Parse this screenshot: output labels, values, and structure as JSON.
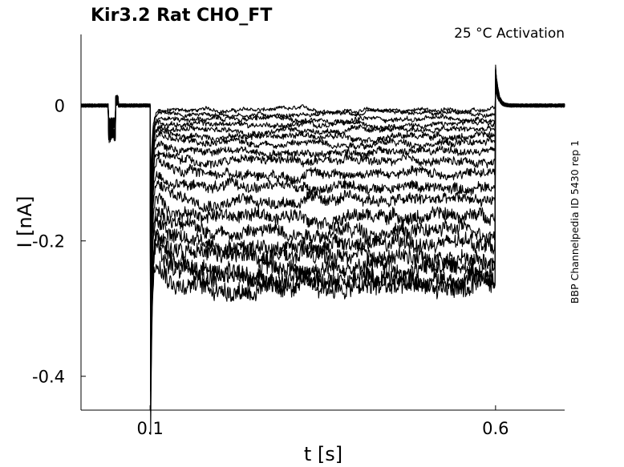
{
  "chart_data": {
    "type": "line",
    "title": "Kir3.2  Rat  CHO_FT",
    "condition": "25 °C  Activation",
    "side_label": "BBP Channelpedia ID 5430 rep 1",
    "xlabel": "t [s]",
    "ylabel": "I [nA]",
    "xlim": [
      0.0,
      0.7
    ],
    "ylim": [
      -0.45,
      0.105
    ],
    "xticks": [
      0.1,
      0.6
    ],
    "xtick_labels": [
      "0.1",
      "0.6"
    ],
    "yticks": [
      0,
      -0.2,
      -0.4
    ],
    "ytick_labels": [
      "0",
      "-0.2",
      "-0.4"
    ],
    "grid": false,
    "protocol": {
      "pulse_start": 0.1,
      "pulse_end": 0.6,
      "artifact_start": 0.04,
      "artifact_end": 0.05,
      "artifact_min": -0.055,
      "peak_transient": -0.405,
      "tail_transient_peak": 0.058
    },
    "series_steady_state_nA": [
      -0.007,
      -0.013,
      -0.02,
      -0.028,
      -0.036,
      -0.045,
      -0.055,
      -0.068,
      -0.083,
      -0.1,
      -0.12,
      -0.14,
      -0.163,
      -0.185,
      -0.205,
      -0.225,
      -0.24,
      -0.255,
      -0.27
    ]
  }
}
